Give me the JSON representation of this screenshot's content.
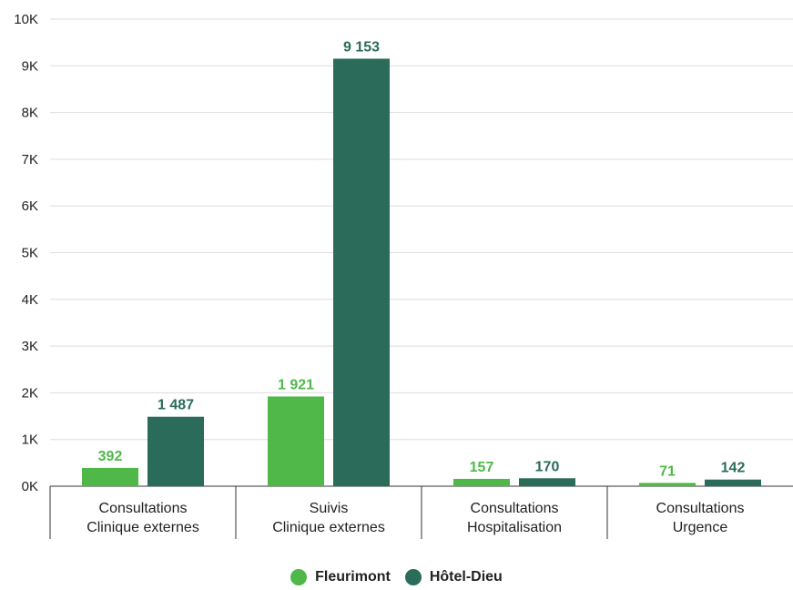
{
  "chart_data": {
    "type": "bar",
    "title": "",
    "xlabel": "",
    "ylabel": "",
    "ylim": [
      0,
      10000
    ],
    "yticks": [
      {
        "value": 0,
        "label": "0K"
      },
      {
        "value": 1000,
        "label": "1K"
      },
      {
        "value": 2000,
        "label": "2K"
      },
      {
        "value": 3000,
        "label": "3K"
      },
      {
        "value": 4000,
        "label": "4K"
      },
      {
        "value": 5000,
        "label": "5K"
      },
      {
        "value": 6000,
        "label": "6K"
      },
      {
        "value": 7000,
        "label": "7K"
      },
      {
        "value": 8000,
        "label": "8K"
      },
      {
        "value": 9000,
        "label": "9K"
      },
      {
        "value": 10000,
        "label": "10K"
      }
    ],
    "categories": [
      [
        "Consultations",
        "Clinique externes"
      ],
      [
        "Suivis",
        "Clinique externes"
      ],
      [
        "Consultations",
        "Hospitalisation"
      ],
      [
        "Consultations",
        "Urgence"
      ]
    ],
    "series": [
      {
        "name": "Fleurimont",
        "color": "#4fb848",
        "values": [
          392,
          1921,
          157,
          71
        ],
        "labels": [
          "392",
          "1 921",
          "157",
          "71"
        ]
      },
      {
        "name": "Hôtel-Dieu",
        "color": "#2a6b5a",
        "values": [
          1487,
          9153,
          170,
          142
        ],
        "labels": [
          "1 487",
          "9 153",
          "170",
          "142"
        ]
      }
    ],
    "grid": true,
    "legend_position": "bottom"
  }
}
